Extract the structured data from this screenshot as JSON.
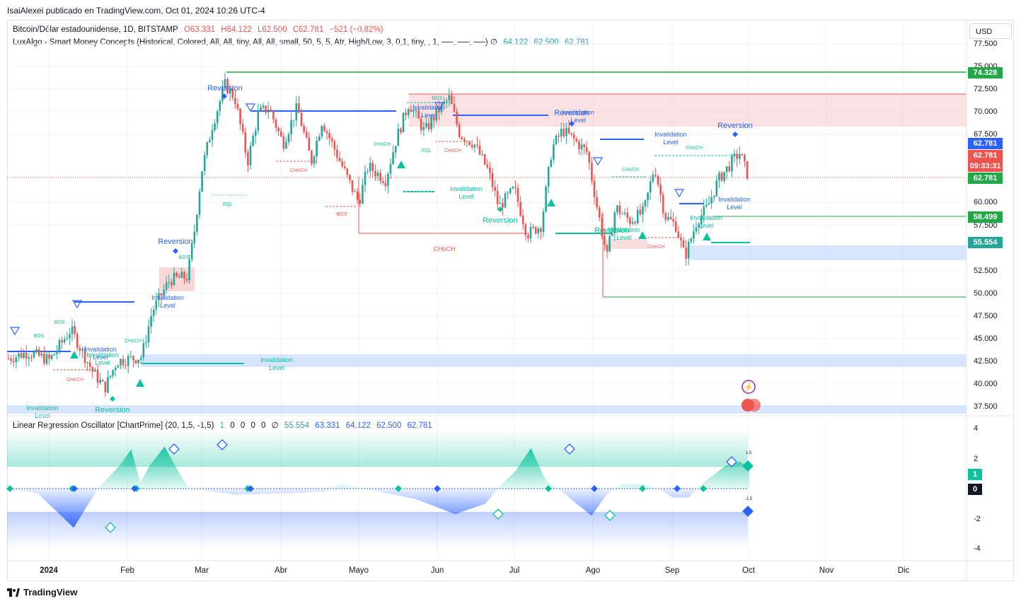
{
  "caption": "IsaiAlexei publicado en TradingView.com, Oct 01, 2024 10:26 UTC-4",
  "legend": {
    "symbol": "Bitcoin/Dólar estadounidense, 1D, BITSTAMP",
    "o": "O63.331",
    "h": "H64.122",
    "l": "L62.500",
    "c": "C62.781",
    "chg": "−521 (−0,82%)",
    "indicator": "LuxAlgo - Smart Money Concepts (Historical, Colored, All, All, tiny, All, All, small, 50, 5, 5, Atr, High/Low, 3, 0,1, tiny, , 1, ──, ──, ──)  ∅",
    "iv1": "64.122",
    "iv2": "62.500",
    "iv3": "62.781"
  },
  "currency": "USD",
  "osc_legend": {
    "name": "Linear Regression Oscillator [ChartPrime] (20, 1,5, -1,5)",
    "v0": "1",
    "v1": "0",
    "v2": "0",
    "v3": "0",
    "v4": "0",
    "v5": "∅",
    "w1": "55.554",
    "w2": "63.331",
    "w3": "64.122",
    "w4": "62.500",
    "w5": "62.781"
  },
  "price_ticks": [
    "77.500",
    "75.000",
    "72.500",
    "70.000",
    "67.500",
    "60.000",
    "57.500",
    "52.500",
    "50.000",
    "47.500",
    "45.000",
    "42.500",
    "40.000",
    "37.500"
  ],
  "price_tags": {
    "t74": "74.328",
    "t62a": "62.781",
    "t62b": "62.781",
    "timer": "09:33:31",
    "t62c": "62.781",
    "t58": "58.499",
    "t55": "55.554"
  },
  "osc_ticks": [
    "4",
    "2",
    "-2",
    "-4"
  ],
  "osc_tags": {
    "one": "1",
    "zero": "0"
  },
  "osc_labels": {
    "up": "1.5",
    "down": "-1.5"
  },
  "x_labels": [
    "2024",
    "Feb",
    "Mar",
    "Abr",
    "Mayo",
    "Jun",
    "Jul",
    "Ago",
    "Sep",
    "Oct",
    "Nov",
    "Dic"
  ],
  "annotations": {
    "reversion": "Reversion",
    "invalidation": "Invalidation",
    "level": "Level",
    "bos": "BOS",
    "choch": "CHoCH",
    "eql": "EQL"
  },
  "colors": {
    "up": "#26a69a",
    "down": "#ef5350",
    "green_line": "#22a846",
    "blue": "#2962ff",
    "teal": "#0ac29b"
  },
  "chart_data": {
    "type": "candlestick",
    "title": "Bitcoin/Dólar estadounidense, 1D, BITSTAMP",
    "ylim": [
      37500,
      77500
    ],
    "x": [
      "2024-01",
      "2024-02",
      "2024-03",
      "2024-04",
      "2024-05",
      "2024-06",
      "2024-07",
      "2024-08",
      "2024-09",
      "2024-10"
    ],
    "approx_close": [
      42500,
      43000,
      62000,
      69000,
      60500,
      67500,
      62500,
      58500,
      57500,
      62781
    ],
    "levels": [
      74328,
      58499,
      55554,
      50000
    ],
    "last": {
      "open": 63331,
      "high": 64122,
      "low": 62500,
      "close": 62781
    },
    "oscillator": {
      "name": "Linear Regression Oscillator",
      "ylim": [
        -4,
        4
      ],
      "thresholds": [
        1.5,
        -1.5
      ],
      "points": [
        [
          0,
          0
        ],
        [
          10,
          -0.3
        ],
        [
          22,
          -2.6
        ],
        [
          30,
          0
        ],
        [
          37,
          1.5
        ],
        [
          41,
          2.6
        ],
        [
          44,
          0.4
        ],
        [
          47,
          1.5
        ],
        [
          52,
          2.8
        ],
        [
          57,
          1.0
        ],
        [
          60,
          0
        ],
        [
          75,
          -0.4
        ],
        [
          95,
          -0.3
        ],
        [
          105,
          -0.2
        ],
        [
          110,
          0.3
        ],
        [
          120,
          -0.1
        ],
        [
          135,
          -0.7
        ],
        [
          148,
          -1.7
        ],
        [
          158,
          -1.0
        ],
        [
          162,
          0
        ],
        [
          168,
          1.2
        ],
        [
          173,
          2.7
        ],
        [
          178,
          0.5
        ],
        [
          182,
          0
        ],
        [
          188,
          -1.0
        ],
        [
          193,
          -1.8
        ],
        [
          198,
          -0.4
        ],
        [
          203,
          0.3
        ],
        [
          210,
          0.3
        ],
        [
          215,
          0
        ],
        [
          220,
          -0.6
        ],
        [
          225,
          -0.6
        ],
        [
          230,
          0.4
        ],
        [
          237,
          1.5
        ],
        [
          242,
          1.8
        ],
        [
          245,
          1.4
        ]
      ]
    }
  }
}
